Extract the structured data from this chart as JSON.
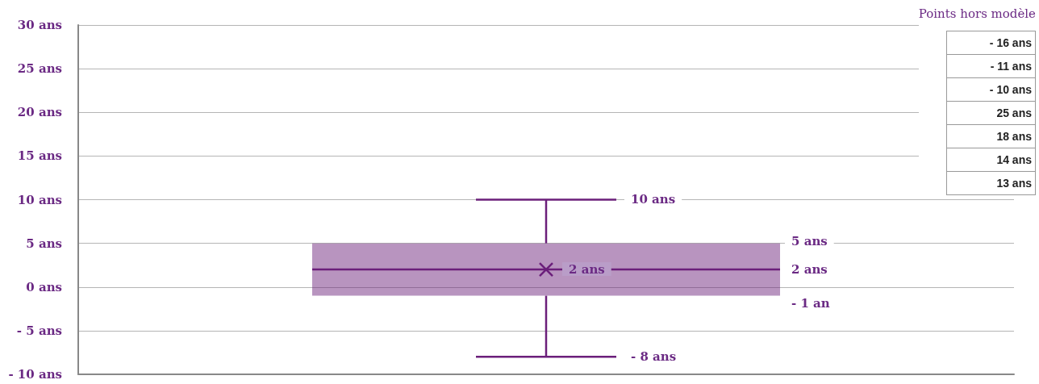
{
  "chart_data": {
    "type": "box",
    "categories": [
      null
    ],
    "series": [
      {
        "color": "#6b1f7a",
        "boxes": [
          {
            "low": -8,
            "q1": -1,
            "median": 2,
            "q3": 5,
            "high": 10,
            "mean": 2
          }
        ]
      }
    ],
    "ylim": [
      -10,
      30
    ],
    "yticks": [
      {
        "value": -10,
        "label": "- 10 ans"
      },
      {
        "value": -5,
        "label": "- 5 ans"
      },
      {
        "value": 0,
        "label": "0 ans"
      },
      {
        "value": 5,
        "label": "5 ans"
      },
      {
        "value": 10,
        "label": "10 ans"
      },
      {
        "value": 15,
        "label": "15 ans"
      },
      {
        "value": 20,
        "label": "20 ans"
      },
      {
        "value": 25,
        "label": "25 ans"
      },
      {
        "value": 30,
        "label": "30 ans"
      }
    ],
    "grid": "y",
    "annotations": [
      "10 ans",
      "5 ans",
      "2 ans",
      "2 ans",
      "- 1 an",
      "- 8 ans",
      "Points hors modèle",
      "- 16 ans",
      "- 11 ans",
      "- 10 ans",
      "25 ans",
      "18 ans",
      "14 ans",
      "13 ans"
    ]
  }
}
